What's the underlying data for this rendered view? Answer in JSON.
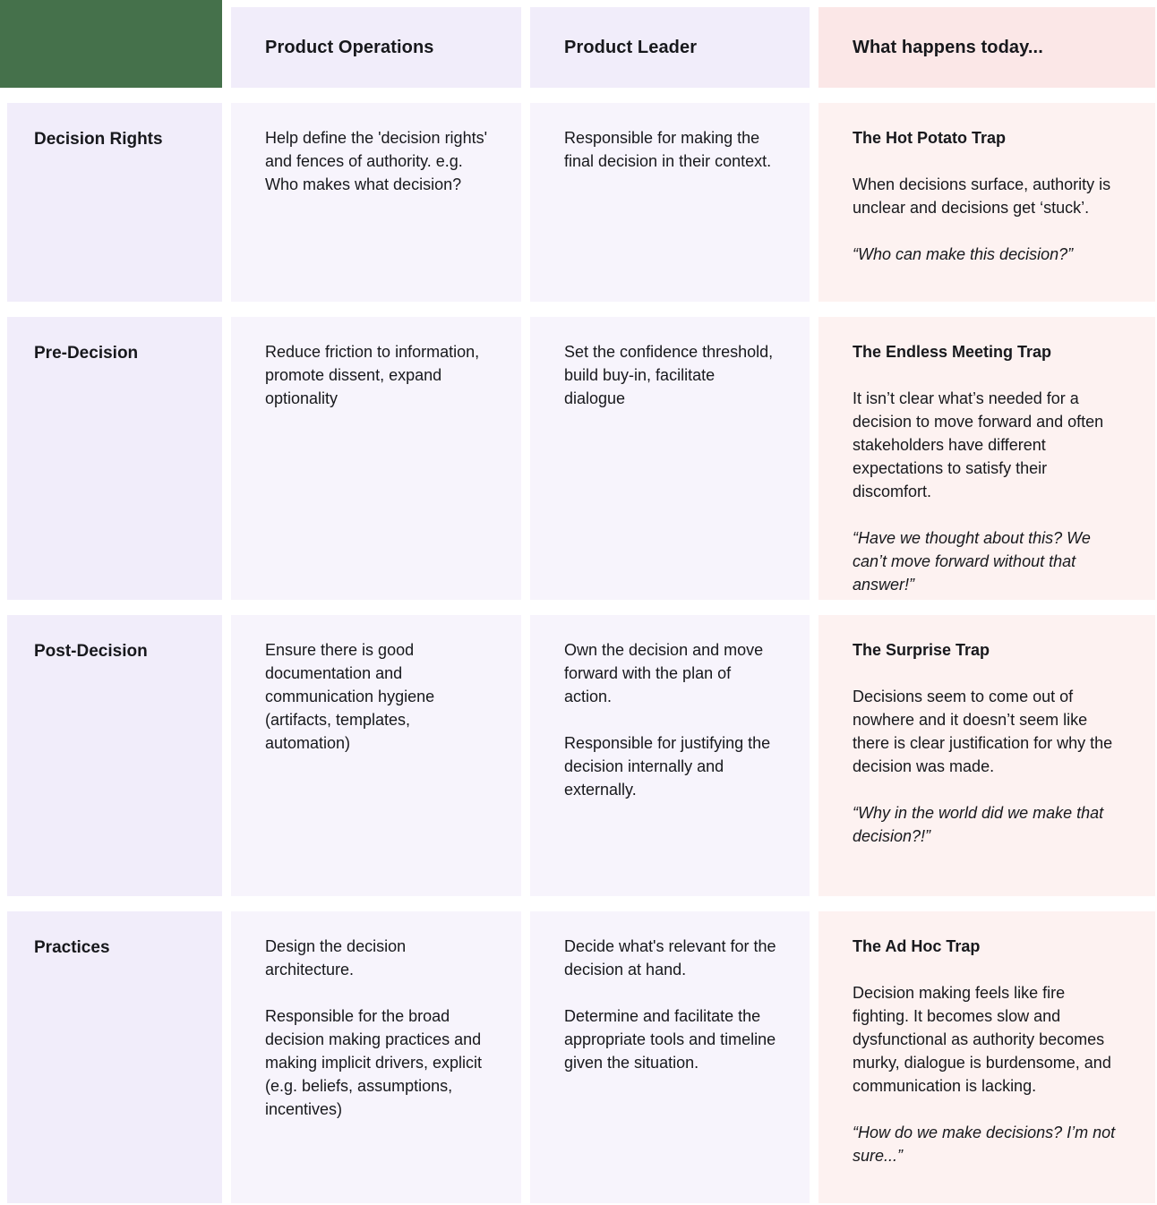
{
  "header": {
    "col_product_operations": "Product Operations",
    "col_product_leader": "Product Leader",
    "col_today": "What happens today..."
  },
  "rows": [
    {
      "label": "Decision Rights",
      "ops": [
        "Help define the 'decision rights' and fences of authority. e.g. Who makes what decision?"
      ],
      "leader": [
        "Responsible for making the final decision in their context."
      ],
      "today": {
        "trap_title": "The Hot Potato Trap",
        "paragraphs": [
          "When decisions surface, authority is unclear and decisions get ‘stuck’."
        ],
        "quote": "“Who can make this decision?”"
      }
    },
    {
      "label": "Pre-Decision",
      "ops": [
        "Reduce friction to information, promote dissent, expand optionality"
      ],
      "leader": [
        "Set the confidence threshold, build buy-in, facilitate dialogue"
      ],
      "today": {
        "trap_title": "The Endless Meeting Trap",
        "paragraphs": [
          "It isn’t clear what’s needed for a decision to move forward and often stakeholders have different expectations to satisfy their discomfort."
        ],
        "quote": "“Have we thought about this? We can’t move forward without that answer!”"
      }
    },
    {
      "label": "Post-Decision",
      "ops": [
        "Ensure there is good documentation and communication hygiene (artifacts, templates, automation)"
      ],
      "leader": [
        "Own the decision and move forward with the plan of action.",
        "Responsible for justifying the decision internally and externally."
      ],
      "today": {
        "trap_title": "The Surprise Trap",
        "paragraphs": [
          "Decisions seem to come out of nowhere and it doesn’t seem like there is clear justification for why the decision was made."
        ],
        "quote": "“Why in the world did we make that decision?!”"
      }
    },
    {
      "label": "Practices",
      "ops": [
        "Design the decision architecture.",
        "Responsible for the broad decision making practices and making implicit drivers, explicit (e.g. beliefs, assumptions, incentives)"
      ],
      "leader": [
        "Decide what's relevant for the decision at hand.",
        "Determine and facilitate the appropriate tools and timeline given the situation."
      ],
      "today": {
        "trap_title": "The Ad Hoc Trap",
        "paragraphs": [
          "Decision making feels like fire fighting. It becomes slow and dysfunctional as authority becomes murky, dialogue is burdensome, and communication is lacking."
        ],
        "quote": "“How do we make decisions? I’m not sure...”"
      }
    }
  ],
  "colors": {
    "green_block": "#45714B",
    "lavender_header": "#F1EDFA",
    "lavender_body": "#F7F4FC",
    "pink_header": "#FBE7E7",
    "pink_body": "#FDF2F1",
    "text": "#17181C"
  }
}
